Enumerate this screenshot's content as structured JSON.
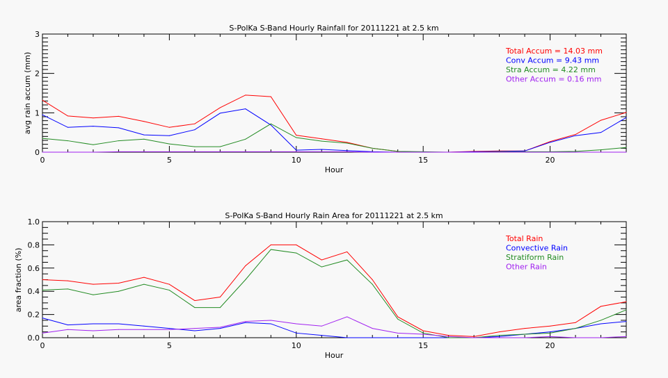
{
  "chart_data": [
    {
      "type": "line",
      "title": "S-PolKa S-Band Hourly Rainfall for 20111221 at 2.5 km",
      "xlabel": "Hour",
      "ylabel": "avg rain accum (mm)",
      "xlim": [
        0,
        23
      ],
      "ylim": [
        0,
        3
      ],
      "xticks": [
        "0",
        "5",
        "10",
        "15",
        "20"
      ],
      "yticks": [
        "0",
        "1",
        "2",
        "3"
      ],
      "legend_position": "top-right",
      "legend": [
        "Total Accum = 14.03 mm",
        "Conv Accum = 9.43 mm",
        "Stra Accum = 4.22 mm",
        "Other Accum = 0.16 mm"
      ],
      "x": [
        0,
        1,
        2,
        3,
        4,
        5,
        6,
        7,
        8,
        9,
        10,
        11,
        12,
        13,
        14,
        15,
        16,
        17,
        18,
        19,
        20,
        21,
        22,
        23
      ],
      "series": [
        {
          "color": "#ff0000",
          "values": [
            1.32,
            0.92,
            0.87,
            0.91,
            0.78,
            0.63,
            0.72,
            1.13,
            1.45,
            1.41,
            0.43,
            0.34,
            0.25,
            0.1,
            0.02,
            0,
            0,
            0.02,
            0.03,
            0.03,
            0.27,
            0.45,
            0.81,
            1.01
          ]
        },
        {
          "color": "#0000ff",
          "values": [
            0.95,
            0.63,
            0.66,
            0.62,
            0.44,
            0.42,
            0.57,
            0.99,
            1.1,
            0.69,
            0.05,
            0.07,
            0.04,
            0.01,
            0,
            0,
            0,
            0.01,
            0.02,
            0.03,
            0.25,
            0.42,
            0.5,
            0.88
          ]
        },
        {
          "color": "#228b22",
          "values": [
            0.35,
            0.29,
            0.19,
            0.29,
            0.33,
            0.21,
            0.14,
            0.14,
            0.33,
            0.72,
            0.37,
            0.28,
            0.23,
            0.1,
            0.02,
            0.01,
            0,
            0,
            0.01,
            0.01,
            0.01,
            0.02,
            0.06,
            0.12
          ]
        },
        {
          "color": "#a020f0",
          "values": [
            0,
            0,
            0,
            0.01,
            0.01,
            0.01,
            0.01,
            0.01,
            0.01,
            0.01,
            0.01,
            0.01,
            0.01,
            0,
            0,
            0,
            0,
            0,
            0,
            0,
            0,
            0,
            0,
            0
          ]
        }
      ]
    },
    {
      "type": "line",
      "title": "S-PolKa S-Band Hourly Rain Area for 20111221 at 2.5 km",
      "xlabel": "Hour",
      "ylabel": "area fraction (%)",
      "xlim": [
        0,
        23
      ],
      "ylim": [
        0,
        1
      ],
      "xticks": [
        "0",
        "5",
        "10",
        "15",
        "20"
      ],
      "yticks": [
        "0.0",
        "0.2",
        "0.4",
        "0.6",
        "0.8",
        "1.0"
      ],
      "legend_position": "top-right",
      "legend": [
        "Total Rain",
        "Convective Rain",
        "Stratiform Rain",
        "Other Rain"
      ],
      "x": [
        0,
        1,
        2,
        3,
        4,
        5,
        6,
        7,
        8,
        9,
        10,
        11,
        12,
        13,
        14,
        15,
        16,
        17,
        18,
        19,
        20,
        21,
        22,
        23
      ],
      "series": [
        {
          "name": "Total Rain",
          "color": "#ff0000",
          "values": [
            0.5,
            0.49,
            0.46,
            0.47,
            0.52,
            0.46,
            0.32,
            0.35,
            0.62,
            0.8,
            0.8,
            0.67,
            0.74,
            0.5,
            0.18,
            0.06,
            0.02,
            0.01,
            0.05,
            0.08,
            0.1,
            0.13,
            0.27,
            0.31
          ]
        },
        {
          "name": "Convective Rain",
          "color": "#0000ff",
          "values": [
            0.17,
            0.11,
            0.12,
            0.12,
            0.1,
            0.08,
            0.06,
            0.08,
            0.13,
            0.12,
            0.04,
            0.02,
            0,
            0,
            0,
            0,
            0,
            0,
            0.01,
            0.03,
            0.05,
            0.08,
            0.12,
            0.14
          ]
        },
        {
          "name": "Stratiform Rain",
          "color": "#228b22",
          "values": [
            0.41,
            0.42,
            0.37,
            0.4,
            0.46,
            0.41,
            0.26,
            0.26,
            0.5,
            0.76,
            0.73,
            0.61,
            0.67,
            0.46,
            0.16,
            0.04,
            0,
            0,
            0.02,
            0.03,
            0.04,
            0.08,
            0.15,
            0.24
          ]
        },
        {
          "name": "Other Rain",
          "color": "#a020f0",
          "values": [
            0.04,
            0.07,
            0.06,
            0.07,
            0.07,
            0.07,
            0.08,
            0.09,
            0.14,
            0.15,
            0.12,
            0.1,
            0.18,
            0.08,
            0.04,
            0.03,
            0.01,
            0,
            0,
            0,
            0.01,
            0,
            0,
            0.01
          ]
        }
      ]
    }
  ]
}
